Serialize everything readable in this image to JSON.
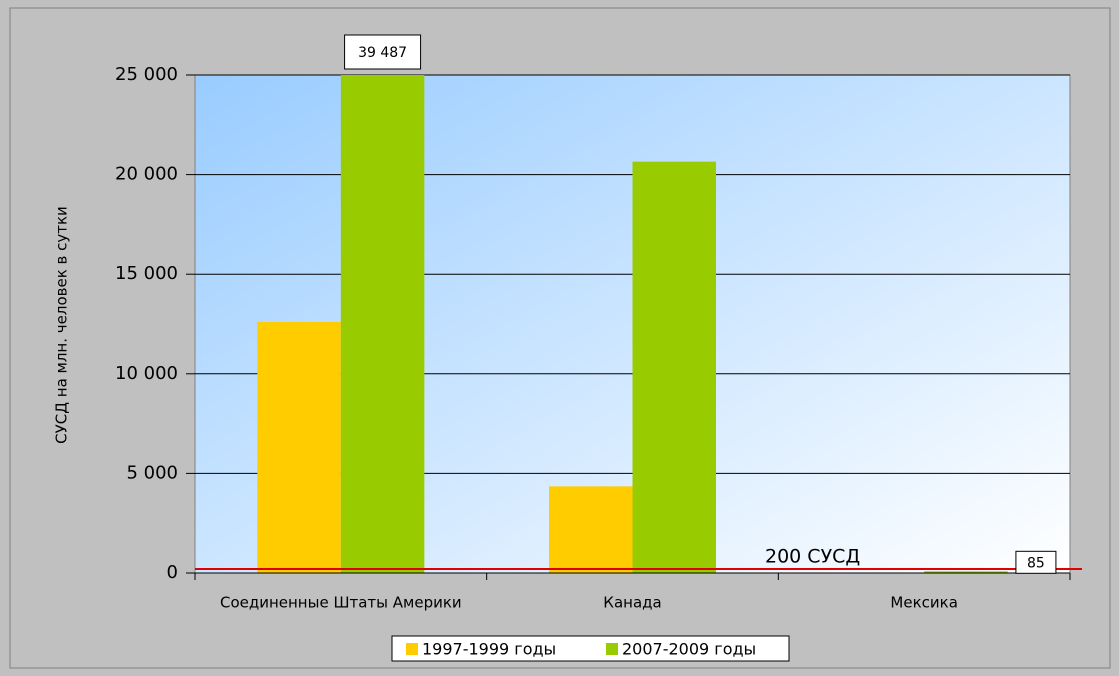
{
  "chart_data": {
    "type": "bar",
    "y_label": "СУСД на млн. человек в сутки",
    "categories": [
      "Соединенные Штаты Америки",
      "Канада",
      "Мексика"
    ],
    "series": [
      {
        "name": "1997-1999 годы",
        "color": "#ffcc00",
        "values": [
          12600,
          4350,
          20
        ]
      },
      {
        "name": "2007-2009 годы",
        "color": "#99cc00",
        "values": [
          39487,
          20650,
          85
        ],
        "value_labels": [
          "39 487",
          null,
          "85"
        ]
      }
    ],
    "ylim": [
      0,
      25000
    ],
    "yticks": [
      {
        "value": 0,
        "label": "0"
      },
      {
        "value": 5000,
        "label": "5 000"
      },
      {
        "value": 10000,
        "label": "10 000"
      },
      {
        "value": 15000,
        "label": "15 000"
      },
      {
        "value": 20000,
        "label": "20 000"
      },
      {
        "value": 25000,
        "label": "25 000"
      }
    ],
    "grid": true,
    "reference_line": {
      "value": 200,
      "label": "200 СУСД",
      "color": "#e00000"
    },
    "legend": "bottom"
  }
}
